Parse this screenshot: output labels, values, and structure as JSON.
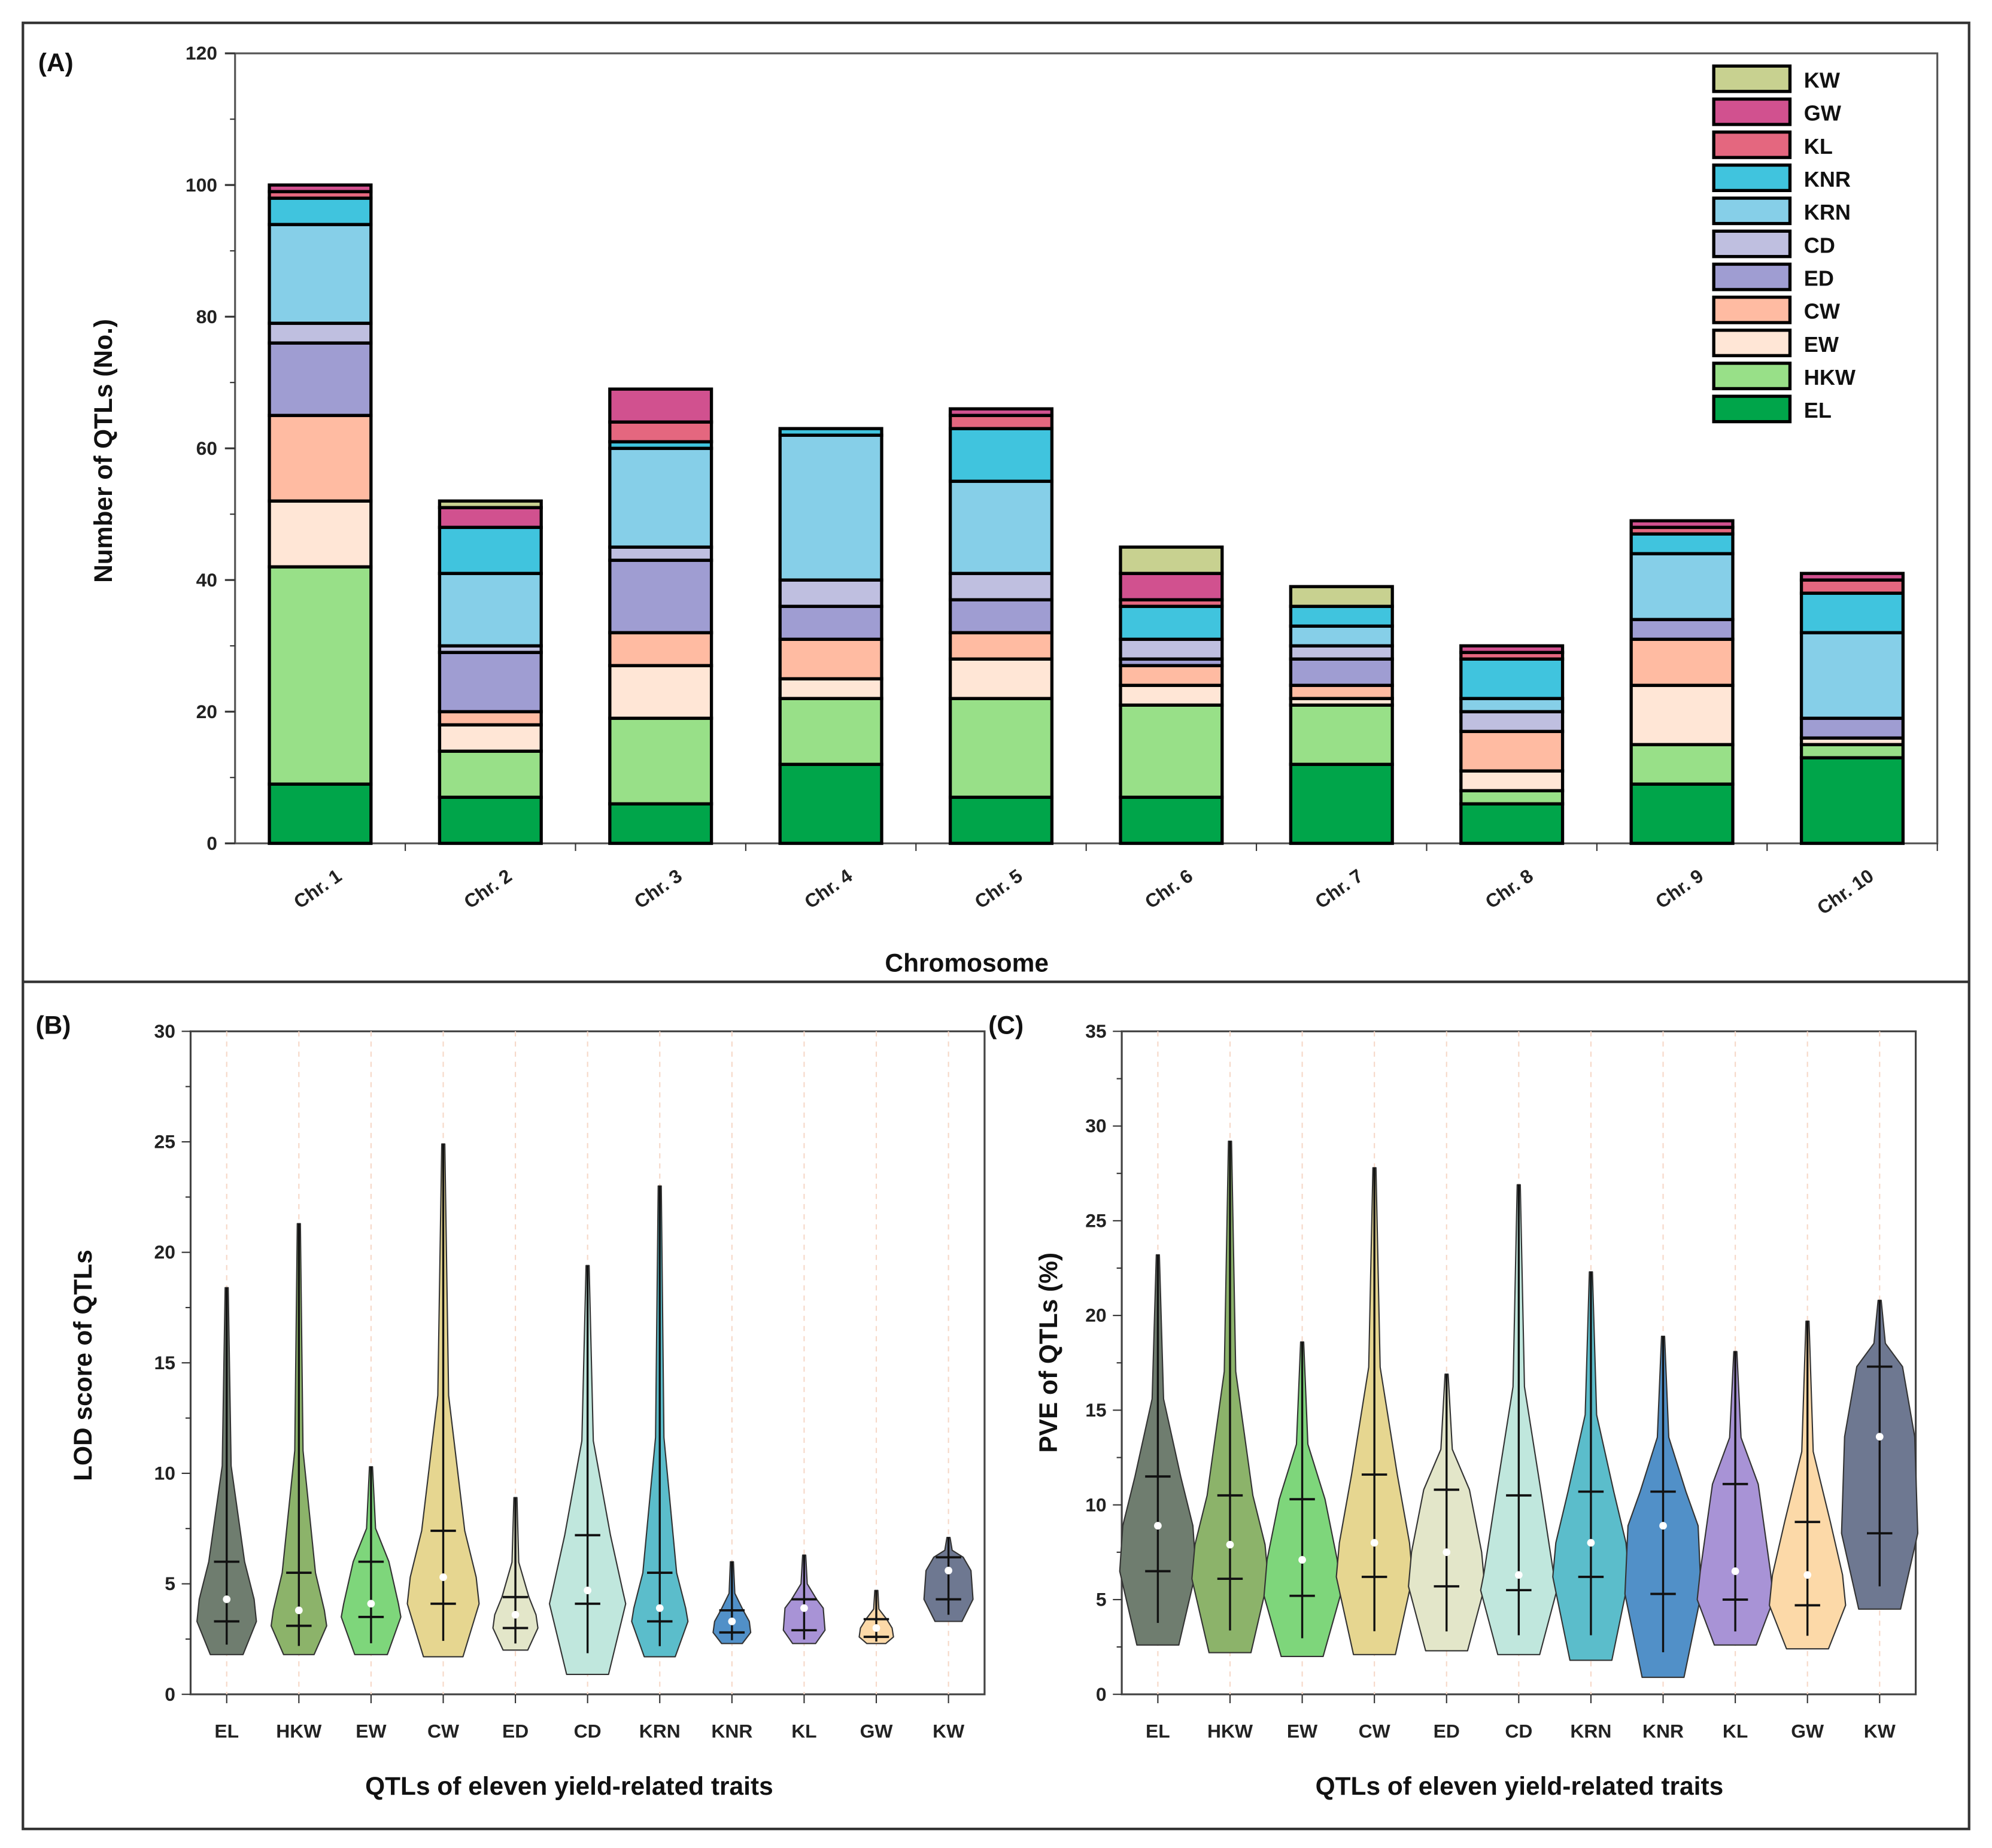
{
  "chart_data": [
    {
      "panel": "(A)",
      "type": "bar",
      "stacked": true,
      "xlabel": "Chromosome",
      "ylabel": "Number of QTLs (No.)",
      "ylim": [
        0,
        120
      ],
      "yticks": [
        0,
        20,
        40,
        60,
        80,
        100,
        120
      ],
      "legend_position": "top-right",
      "categories": [
        "Chr. 1",
        "Chr. 2",
        "Chr. 3",
        "Chr. 4",
        "Chr. 5",
        "Chr. 6",
        "Chr. 7",
        "Chr. 8",
        "Chr. 9",
        "Chr. 10"
      ],
      "series": [
        {
          "name": "EL",
          "color": "#00a54a",
          "values": [
            9,
            7,
            6,
            12,
            7,
            7,
            12,
            6,
            9,
            13
          ]
        },
        {
          "name": "HKW",
          "color": "#98e088",
          "values": [
            33,
            7,
            13,
            10,
            15,
            14,
            9,
            2,
            6,
            2
          ]
        },
        {
          "name": "EW",
          "color": "#ffe6d6",
          "values": [
            10,
            4,
            8,
            3,
            6,
            3,
            1,
            3,
            9,
            1
          ]
        },
        {
          "name": "CW",
          "color": "#ffbba2",
          "values": [
            13,
            2,
            5,
            6,
            4,
            3,
            2,
            6,
            7,
            0
          ]
        },
        {
          "name": "ED",
          "color": "#9f9dd2",
          "values": [
            11,
            9,
            11,
            5,
            5,
            1,
            4,
            0,
            3,
            3
          ]
        },
        {
          "name": "CD",
          "color": "#bfbfe0",
          "values": [
            3,
            1,
            2,
            4,
            4,
            3,
            2,
            3,
            0,
            0
          ]
        },
        {
          "name": "KRN",
          "color": "#86cfe8",
          "values": [
            15,
            11,
            15,
            22,
            14,
            0,
            3,
            2,
            10,
            13
          ]
        },
        {
          "name": "KNR",
          "color": "#40c4de",
          "values": [
            4,
            7,
            1,
            1,
            8,
            5,
            3,
            6,
            3,
            6
          ]
        },
        {
          "name": "KL",
          "color": "#e4677f",
          "values": [
            1,
            0,
            3,
            0,
            2,
            1,
            0,
            1,
            1,
            2
          ]
        },
        {
          "name": "GW",
          "color": "#d1518f",
          "values": [
            1,
            3,
            5,
            0,
            1,
            4,
            0,
            1,
            1,
            1
          ]
        },
        {
          "name": "KW",
          "color": "#c8d190",
          "values": [
            0,
            1,
            0,
            0,
            0,
            4,
            3,
            0,
            0,
            0
          ]
        }
      ]
    },
    {
      "panel": "(B)",
      "type": "violin",
      "xlabel": "QTLs of eleven yield-related traits",
      "ylabel": "LOD score of QTLs",
      "ylim": [
        0,
        30
      ],
      "yticks": [
        0,
        5,
        10,
        15,
        20,
        25,
        30
      ],
      "categories": [
        "EL",
        "HKW",
        "EW",
        "CW",
        "ED",
        "CD",
        "KRN",
        "KNR",
        "KL",
        "GW",
        "KW"
      ],
      "colors": [
        "#6f7d6f",
        "#8cb36a",
        "#7ed67b",
        "#e6d690",
        "#e3e6c9",
        "#c0e7dd",
        "#5bbdcb",
        "#5190c8",
        "#a893d6",
        "#fcd9a8",
        "#6e7891"
      ],
      "stats": [
        {
          "min": 1.8,
          "q1": 3.3,
          "median": 4.3,
          "q3": 6.0,
          "max": 18.4
        },
        {
          "min": 1.8,
          "q1": 3.1,
          "median": 3.8,
          "q3": 5.5,
          "max": 21.3
        },
        {
          "min": 1.8,
          "q1": 3.5,
          "median": 4.1,
          "q3": 6.0,
          "max": 10.3
        },
        {
          "min": 1.7,
          "q1": 4.1,
          "median": 5.3,
          "q3": 7.4,
          "max": 24.9
        },
        {
          "min": 2.0,
          "q1": 3.0,
          "median": 3.6,
          "q3": 4.4,
          "max": 8.9
        },
        {
          "min": 0.9,
          "q1": 4.1,
          "median": 4.7,
          "q3": 7.2,
          "max": 19.4
        },
        {
          "min": 1.7,
          "q1": 3.3,
          "median": 3.9,
          "q3": 5.5,
          "max": 23.0
        },
        {
          "min": 2.3,
          "q1": 2.8,
          "median": 3.3,
          "q3": 3.8,
          "max": 6.0
        },
        {
          "min": 2.3,
          "q1": 2.9,
          "median": 3.9,
          "q3": 4.3,
          "max": 6.3
        },
        {
          "min": 2.3,
          "q1": 2.6,
          "median": 3.0,
          "q3": 3.4,
          "max": 4.7
        },
        {
          "min": 3.3,
          "q1": 4.3,
          "median": 5.6,
          "q3": 6.2,
          "max": 7.1
        }
      ]
    },
    {
      "panel": "(C)",
      "type": "violin",
      "xlabel": "QTLs of eleven yield-related traits",
      "ylabel": "PVE of QTLs (%)",
      "ylim": [
        0,
        35
      ],
      "yticks": [
        0,
        5,
        10,
        15,
        20,
        25,
        30,
        35
      ],
      "categories": [
        "EL",
        "HKW",
        "EW",
        "CW",
        "ED",
        "CD",
        "KRN",
        "KNR",
        "KL",
        "GW",
        "KW"
      ],
      "colors": [
        "#6f7d6f",
        "#8cb36a",
        "#7ed67b",
        "#e6d690",
        "#e3e6c9",
        "#c0e7dd",
        "#5bbdcb",
        "#5190c8",
        "#a893d6",
        "#fcd9a8",
        "#6e7891"
      ],
      "stats": [
        {
          "min": 2.6,
          "q1": 6.5,
          "median": 8.9,
          "q3": 11.5,
          "max": 23.2
        },
        {
          "min": 2.2,
          "q1": 6.1,
          "median": 7.9,
          "q3": 10.5,
          "max": 29.2
        },
        {
          "min": 2.0,
          "q1": 5.2,
          "median": 7.1,
          "q3": 10.3,
          "max": 18.6
        },
        {
          "min": 2.1,
          "q1": 6.2,
          "median": 8.0,
          "q3": 11.6,
          "max": 27.8
        },
        {
          "min": 2.3,
          "q1": 5.7,
          "median": 7.5,
          "q3": 10.8,
          "max": 16.9
        },
        {
          "min": 2.1,
          "q1": 5.5,
          "median": 6.3,
          "q3": 10.5,
          "max": 26.9
        },
        {
          "min": 1.8,
          "q1": 6.2,
          "median": 8.0,
          "q3": 10.7,
          "max": 22.3
        },
        {
          "min": 0.9,
          "q1": 5.3,
          "median": 8.9,
          "q3": 10.7,
          "max": 18.9
        },
        {
          "min": 2.6,
          "q1": 5.0,
          "median": 6.5,
          "q3": 11.1,
          "max": 18.1
        },
        {
          "min": 2.4,
          "q1": 4.7,
          "median": 6.3,
          "q3": 9.1,
          "max": 19.7
        },
        {
          "min": 4.5,
          "q1": 8.5,
          "median": 13.6,
          "q3": 17.3,
          "max": 20.8
        }
      ]
    }
  ]
}
